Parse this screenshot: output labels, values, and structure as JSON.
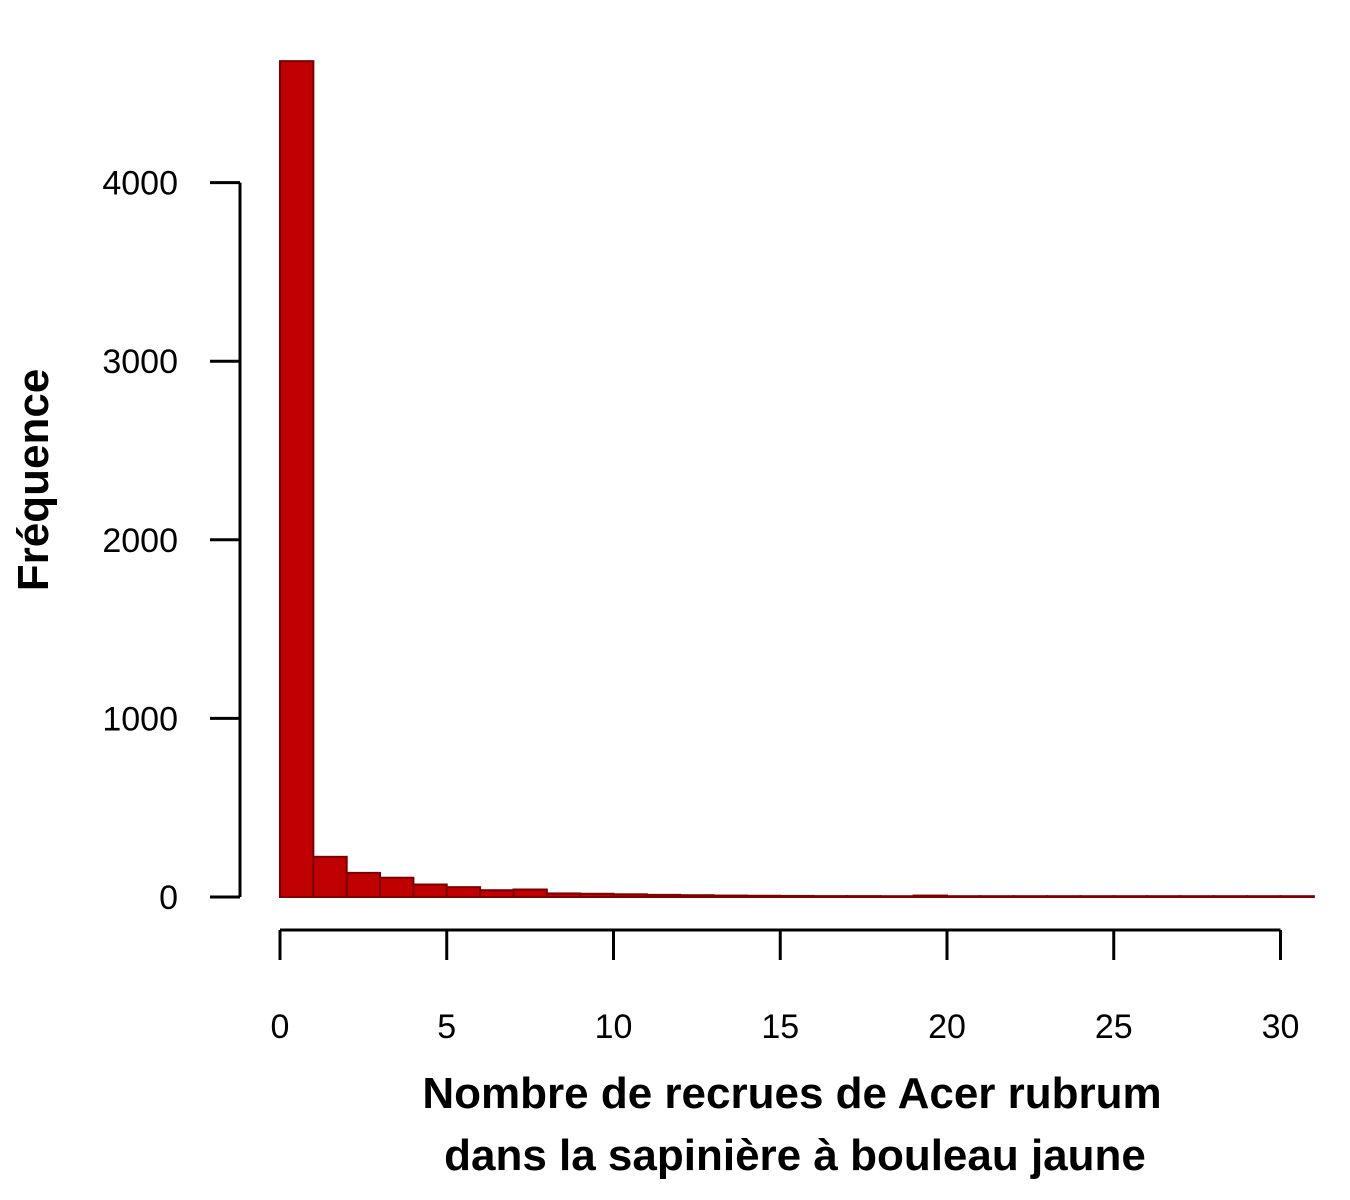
{
  "chart_data": {
    "type": "bar",
    "title": "",
    "xlabel_lines": [
      "Nombre de recrues de Acer rubrum",
      "dans la sapinière à bouleau jaune"
    ],
    "ylabel": "Fréquence",
    "bar_color": "#c00000",
    "bar_edge_color": "#7a0000",
    "bin_width": 1,
    "bin_edges_start": [
      0,
      1,
      2,
      3,
      4,
      5,
      6,
      7,
      8,
      9,
      10,
      11,
      12,
      13,
      14,
      15,
      16,
      17,
      18,
      19,
      20,
      21,
      22,
      23,
      24,
      25,
      26,
      27,
      28,
      29,
      30
    ],
    "values": [
      4680,
      225,
      135,
      108,
      70,
      55,
      38,
      42,
      20,
      18,
      15,
      12,
      10,
      8,
      7,
      6,
      5,
      5,
      4,
      8,
      3,
      3,
      2,
      2,
      2,
      3,
      2,
      2,
      2,
      1,
      1
    ],
    "xlim": [
      0,
      31.2
    ],
    "ylim": [
      0,
      4700
    ],
    "xticks": [
      0,
      5,
      10,
      15,
      20,
      25,
      30
    ],
    "xtick_labels": [
      "0",
      "5",
      "10",
      "15",
      "20",
      "25",
      "30"
    ],
    "yticks": [
      0,
      1000,
      2000,
      3000,
      4000
    ],
    "ytick_labels": [
      "0",
      "1000",
      "2000",
      "3000",
      "4000"
    ],
    "grid": false,
    "legend": "none"
  }
}
